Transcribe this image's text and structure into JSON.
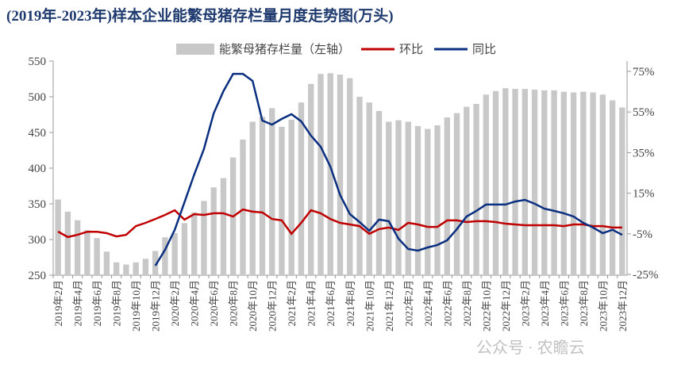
{
  "chart_data": {
    "type": "bar_line",
    "title": "(2019年-2023年)样本企业能繁母猪存栏量月度走势图(万头)",
    "watermark": "公众号 · 农瞻云",
    "categories": [
      "2019年2月",
      null,
      "2019年4月",
      null,
      "2019年6月",
      null,
      "2019年8月",
      null,
      "2019年10月",
      null,
      "2019年12月",
      null,
      "2020年2月",
      null,
      "2020年4月",
      null,
      "2020年6月",
      null,
      "2020年8月",
      null,
      "2020年10月",
      null,
      "2020年12月",
      null,
      "2021年2月",
      null,
      "2021年4月",
      null,
      "2021年6月",
      null,
      "2021年8月",
      null,
      "2021年10月",
      null,
      "2021年12月",
      null,
      "2022年2月",
      null,
      "2022年4月",
      null,
      "2022年6月",
      null,
      "2022年8月",
      null,
      "2022年10月",
      null,
      "2022年12月",
      null,
      "2023年2月",
      null,
      "2023年4月",
      null,
      "2023年6月",
      null,
      "2023年8月",
      null,
      "2023年10月",
      null,
      "2023年12月"
    ],
    "series": [
      {
        "name": "能繁母猪存栏量（左轴）",
        "color": "#c8c8c8",
        "kind": "bar",
        "values": [
          356,
          339,
          327,
          313,
          302,
          283,
          268,
          265,
          268,
          273,
          284,
          303,
          309,
          323,
          338,
          354,
          373,
          386,
          415,
          440,
          465,
          472,
          484,
          458,
          468,
          492,
          518,
          532,
          533,
          531,
          526,
          500,
          492,
          480,
          465,
          467,
          465,
          459,
          455,
          460,
          471,
          477,
          486,
          490,
          503,
          508,
          512,
          511,
          511,
          510,
          509,
          509,
          507,
          506,
          507,
          506,
          503,
          495,
          485
        ]
      },
      {
        "name": "环比",
        "color": "#c00000",
        "kind": "line",
        "axis": "y2",
        "values": [
          -3.9,
          -6.6,
          -5.5,
          -4,
          -4,
          -4.7,
          -6.3,
          -5.5,
          -1.2,
          0.4,
          2.3,
          4.3,
          6.6,
          2,
          4.7,
          4.3,
          5.1,
          5.1,
          3.5,
          7,
          5.9,
          5.5,
          2.3,
          1.6,
          -5,
          0.4,
          6.6,
          5.1,
          2.3,
          0.4,
          -0.4,
          -1.2,
          -5,
          -2.7,
          -1.9,
          -3.1,
          0.4,
          -0.4,
          -1.6,
          -1.6,
          1.6,
          1.6,
          0.8,
          1.2,
          1.2,
          0.8,
          0,
          -0.4,
          -0.8,
          -0.8,
          -0.8,
          -0.8,
          -1.2,
          -0.4,
          -0.4,
          -1.2,
          -1.2,
          -1.9,
          -1.9
        ]
      },
      {
        "name": "同比",
        "color": "#0a2f80",
        "kind": "line",
        "axis": "y2",
        "values": [
          null,
          null,
          null,
          null,
          null,
          null,
          null,
          null,
          null,
          null,
          -20.7,
          -12.9,
          -3,
          10.5,
          24.2,
          36.7,
          54.3,
          65.2,
          73.8,
          73.8,
          70.3,
          50.8,
          48.8,
          51.6,
          53.9,
          50.4,
          43.4,
          37.9,
          28.1,
          14.1,
          4.7,
          0.8,
          -3.5,
          2,
          1.2,
          -7.4,
          -12.5,
          -13.3,
          -11.7,
          -10.5,
          -8.2,
          -2.7,
          3.5,
          6.3,
          9.4,
          9.4,
          9.4,
          10.9,
          11.7,
          9.8,
          7.4,
          6.3,
          5.1,
          3.5,
          0.4,
          -1.9,
          -4.7,
          -3,
          -5.5
        ]
      }
    ],
    "ylim": [
      250,
      550
    ],
    "yticks": [
      250,
      300,
      350,
      400,
      450,
      500,
      550
    ],
    "y2lim": [
      -25,
      75
    ],
    "y2ticks": [
      {
        "value": -25,
        "label": "-25%"
      },
      {
        "value": -5,
        "label": "-5%"
      },
      {
        "value": 15,
        "label": "15%"
      },
      {
        "value": 35,
        "label": "35%"
      },
      {
        "value": 55,
        "label": "55%"
      },
      {
        "value": 75,
        "label": "75%"
      }
    ]
  }
}
